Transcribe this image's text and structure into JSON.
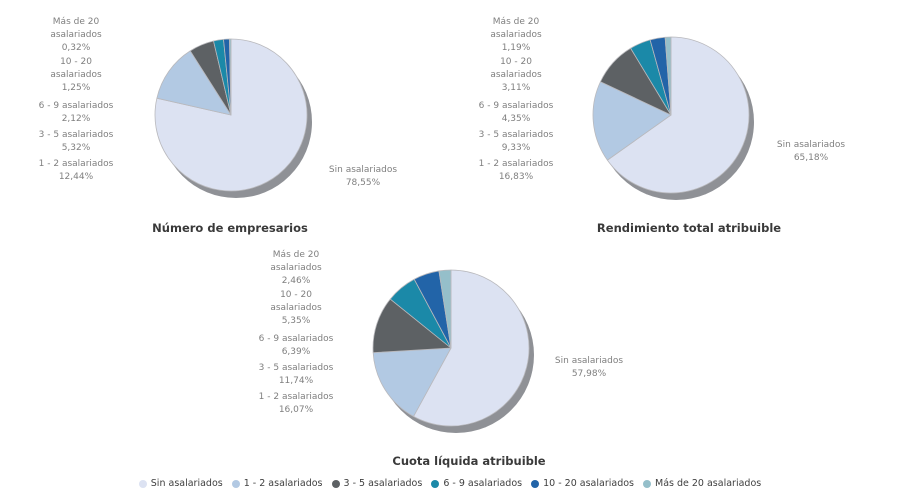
{
  "page": {
    "background": "#ffffff"
  },
  "styles": {
    "shadow_color": "#8f9196",
    "slice_border": "#b9b9bd",
    "label_color": "#7f7f7f",
    "title_color": "#3a3a3a",
    "legend_text_color": "#3f3f3f"
  },
  "legend": {
    "items": [
      {
        "label": "Sin asalariados",
        "color": "#dce2f2"
      },
      {
        "label": "1 - 2 asalariados",
        "color": "#b2c9e3"
      },
      {
        "label": "3 - 5 asalariados",
        "color": "#5d6164"
      },
      {
        "label": "6 - 9 asalariados",
        "color": "#1b89a8"
      },
      {
        "label": "10 - 20 asalariados",
        "color": "#2264a8"
      },
      {
        "label": "Más de 20 asalariados",
        "color": "#95bfca"
      }
    ]
  },
  "chart_data": [
    {
      "type": "pie",
      "title": "Número de empresarios",
      "categories": [
        "Sin asalariados",
        "1 - 2 asalariados",
        "3 - 5 asalariados",
        "6 - 9 asalariados",
        "10 - 20 asalariados",
        "Más de 20 asalariados"
      ],
      "values": [
        78.55,
        12.44,
        5.32,
        2.12,
        1.25,
        0.32
      ],
      "value_labels": [
        "78,55%",
        "12,44%",
        "5,32%",
        "2,12%",
        "1,25%",
        "0,32%"
      ],
      "legend_position": "bottom-shared",
      "callouts": [
        [
          "Más de 20",
          "asalariados",
          "0,32%"
        ],
        [
          "10 - 20",
          "asalariados",
          "1,25%"
        ],
        [
          "6 - 9 asalariados",
          "2,12%"
        ],
        [
          "3 - 5 asalariados",
          "5,32%"
        ],
        [
          "1 - 2 asalariados",
          "12,44%"
        ]
      ],
      "sin_callout": [
        "Sin asalariados",
        "78,55%"
      ]
    },
    {
      "type": "pie",
      "title": "Rendimiento total atribuible",
      "categories": [
        "Sin asalariados",
        "1 - 2 asalariados",
        "3 - 5 asalariados",
        "6 - 9 asalariados",
        "10 - 20 asalariados",
        "Más de 20 asalariados"
      ],
      "values": [
        65.18,
        16.83,
        9.33,
        4.35,
        3.11,
        1.19
      ],
      "value_labels": [
        "65,18%",
        "16,83%",
        "9,33%",
        "4,35%",
        "3,11%",
        "1,19%"
      ],
      "legend_position": "bottom-shared",
      "callouts": [
        [
          "Más de 20",
          "asalariados",
          "1,19%"
        ],
        [
          "10 - 20",
          "asalariados",
          "3,11%"
        ],
        [
          "6 - 9 asalariados",
          "4,35%"
        ],
        [
          "3 - 5 asalariados",
          "9,33%"
        ],
        [
          "1 - 2 asalariados",
          "16,83%"
        ]
      ],
      "sin_callout": [
        "Sin asalariados",
        "65,18%"
      ]
    },
    {
      "type": "pie",
      "title": "Cuota líquida atribuible",
      "categories": [
        "Sin asalariados",
        "1 - 2 asalariados",
        "3 - 5 asalariados",
        "6 - 9 asalariados",
        "10 - 20 asalariados",
        "Más de 20 asalariados"
      ],
      "values": [
        57.98,
        16.07,
        11.74,
        6.39,
        5.35,
        2.46
      ],
      "value_labels": [
        "57,98%",
        "16,07%",
        "11,74%",
        "6,39%",
        "5,35%",
        "2,46%"
      ],
      "legend_position": "bottom-shared",
      "callouts": [
        [
          "Más de 20",
          "asalariados",
          "2,46%"
        ],
        [
          "10 - 20",
          "asalariados",
          "5,35%"
        ],
        [
          "6 - 9 asalariados",
          "6,39%"
        ],
        [
          "3 - 5 asalariados",
          "11,74%"
        ],
        [
          "1 - 2 asalariados",
          "16,07%"
        ]
      ],
      "sin_callout": [
        "Sin asalariados",
        "57,98%"
      ]
    }
  ]
}
